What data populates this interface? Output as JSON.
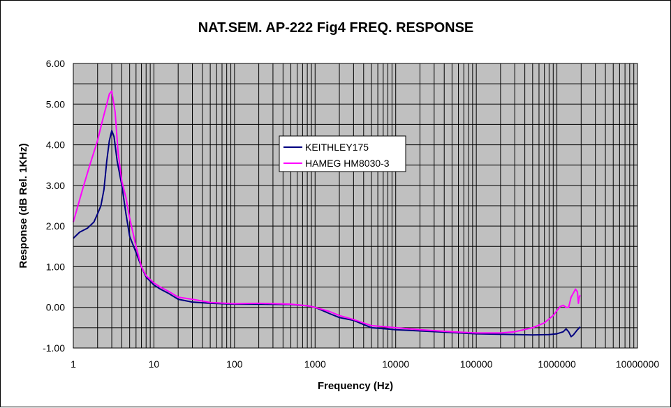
{
  "chart_data": {
    "type": "line",
    "title": "NAT.SEM. AP-222 Fig4 FREQ. RESPONSE",
    "xlabel": "Frequency (Hz)",
    "ylabel": "Response (dB Rel. 1KHz)",
    "xscale": "log",
    "xlim": [
      1,
      10000000
    ],
    "ylim": [
      -1.0,
      6.0
    ],
    "ytick_step": 0.5,
    "xtick_labels": [
      "1",
      "10",
      "100",
      "1000",
      "10000",
      "100000",
      "1000000",
      "10000000"
    ],
    "ytick_labels": [
      "6.00",
      "5.00",
      "4.00",
      "3.00",
      "2.00",
      "1.00",
      "0.00",
      "-1.00"
    ],
    "grid": true,
    "plot_background": "#c0c0c0",
    "legend_position": "center",
    "series": [
      {
        "name": "KEITHLEY175",
        "color": "#000080",
        "points": [
          [
            1,
            1.7
          ],
          [
            1.2,
            1.85
          ],
          [
            1.5,
            1.95
          ],
          [
            1.8,
            2.1
          ],
          [
            2.0,
            2.3
          ],
          [
            2.2,
            2.5
          ],
          [
            2.4,
            2.9
          ],
          [
            2.6,
            3.6
          ],
          [
            2.8,
            4.1
          ],
          [
            3.0,
            4.35
          ],
          [
            3.2,
            4.2
          ],
          [
            3.5,
            3.6
          ],
          [
            4.0,
            3.0
          ],
          [
            4.5,
            2.3
          ],
          [
            5,
            1.75
          ],
          [
            6,
            1.35
          ],
          [
            7,
            1.0
          ],
          [
            8,
            0.75
          ],
          [
            10,
            0.55
          ],
          [
            12,
            0.45
          ],
          [
            15,
            0.35
          ],
          [
            20,
            0.2
          ],
          [
            30,
            0.13
          ],
          [
            50,
            0.1
          ],
          [
            100,
            0.08
          ],
          [
            200,
            0.08
          ],
          [
            500,
            0.07
          ],
          [
            800,
            0.04
          ],
          [
            1000,
            0.0
          ],
          [
            1500,
            -0.15
          ],
          [
            2000,
            -0.25
          ],
          [
            3000,
            -0.32
          ],
          [
            5000,
            -0.5
          ],
          [
            10000,
            -0.55
          ],
          [
            20000,
            -0.58
          ],
          [
            50000,
            -0.62
          ],
          [
            100000,
            -0.65
          ],
          [
            200000,
            -0.66
          ],
          [
            500000,
            -0.68
          ],
          [
            800000,
            -0.67
          ],
          [
            1000000,
            -0.65
          ],
          [
            1200000,
            -0.6
          ],
          [
            1300000,
            -0.53
          ],
          [
            1400000,
            -0.6
          ],
          [
            1500000,
            -0.72
          ],
          [
            1600000,
            -0.68
          ],
          [
            1800000,
            -0.55
          ],
          [
            1950000,
            -0.48
          ]
        ]
      },
      {
        "name": "HAMEG HM8030-3",
        "color": "#ff00ff",
        "points": [
          [
            1,
            2.1
          ],
          [
            1.3,
            2.9
          ],
          [
            1.6,
            3.5
          ],
          [
            2.0,
            4.1
          ],
          [
            2.3,
            4.6
          ],
          [
            2.6,
            5.0
          ],
          [
            2.8,
            5.25
          ],
          [
            3.0,
            5.32
          ],
          [
            3.3,
            4.8
          ],
          [
            3.6,
            3.8
          ],
          [
            4.0,
            3.1
          ],
          [
            4.5,
            2.7
          ],
          [
            5,
            2.2
          ],
          [
            6,
            1.5
          ],
          [
            7,
            1.0
          ],
          [
            8,
            0.78
          ],
          [
            10,
            0.6
          ],
          [
            12,
            0.5
          ],
          [
            15,
            0.4
          ],
          [
            20,
            0.25
          ],
          [
            30,
            0.2
          ],
          [
            50,
            0.12
          ],
          [
            100,
            0.09
          ],
          [
            200,
            0.1
          ],
          [
            500,
            0.08
          ],
          [
            800,
            0.04
          ],
          [
            1000,
            0.0
          ],
          [
            1500,
            -0.1
          ],
          [
            2000,
            -0.2
          ],
          [
            3000,
            -0.3
          ],
          [
            5000,
            -0.45
          ],
          [
            10000,
            -0.5
          ],
          [
            20000,
            -0.55
          ],
          [
            50000,
            -0.6
          ],
          [
            100000,
            -0.63
          ],
          [
            200000,
            -0.63
          ],
          [
            300000,
            -0.6
          ],
          [
            500000,
            -0.5
          ],
          [
            700000,
            -0.38
          ],
          [
            900000,
            -0.2
          ],
          [
            1000000,
            -0.08
          ],
          [
            1100000,
            0.02
          ],
          [
            1200000,
            0.05
          ],
          [
            1300000,
            0.0
          ],
          [
            1400000,
            0.0
          ],
          [
            1500000,
            0.25
          ],
          [
            1600000,
            0.35
          ],
          [
            1700000,
            0.45
          ],
          [
            1800000,
            0.38
          ],
          [
            1850000,
            0.1
          ],
          [
            1900000,
            0.25
          ],
          [
            1950000,
            0.3
          ]
        ]
      }
    ]
  }
}
